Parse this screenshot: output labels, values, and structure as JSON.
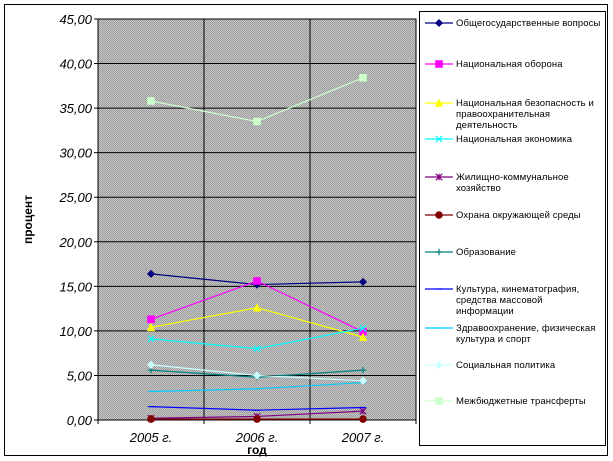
{
  "chart_data": {
    "type": "line",
    "title": "",
    "xlabel": "год",
    "ylabel": "процент",
    "categories": [
      "2005 г.",
      "2006 г.",
      "2007 г."
    ],
    "y_tick_labels": [
      "0,00",
      "5,00",
      "10,00",
      "15,00",
      "20,00",
      "25,00",
      "30,00",
      "35,00",
      "40,00",
      "45,00"
    ],
    "ylim": [
      0,
      45
    ],
    "grid": true,
    "legend_position": "right",
    "series": [
      {
        "name": "Общегосударственные вопросы",
        "values": [
          16.4,
          15.2,
          15.5
        ],
        "color": "#000080",
        "marker": "diamond"
      },
      {
        "name": "Национальная оборона",
        "values": [
          11.3,
          15.6,
          9.9
        ],
        "color": "#ff00ff",
        "marker": "square"
      },
      {
        "name": "Национальная безопасность и правоохранительная деятельность",
        "values": [
          10.4,
          12.6,
          9.3
        ],
        "color": "#ffff00",
        "marker": "triangle"
      },
      {
        "name": "Национальная экономика",
        "values": [
          9.1,
          8.0,
          10.3
        ],
        "color": "#00ffff",
        "marker": "x"
      },
      {
        "name": "Жилищно-коммунальное хозяйство",
        "values": [
          0.2,
          0.4,
          1.0
        ],
        "color": "#800080",
        "marker": "star"
      },
      {
        "name": "Охрана окружающей среды",
        "values": [
          0.1,
          0.1,
          0.1
        ],
        "color": "#800000",
        "marker": "circle"
      },
      {
        "name": "Образование",
        "values": [
          5.6,
          4.8,
          5.6
        ],
        "color": "#008080",
        "marker": "plus"
      },
      {
        "name": "Культура, кинематография, средства массовой информации",
        "values": [
          1.5,
          1.1,
          1.4
        ],
        "color": "#0000ff",
        "marker": "dash"
      },
      {
        "name": "Здравоохранение, физическая культура и спорт",
        "values": [
          3.2,
          3.5,
          4.2
        ],
        "color": "#00ccff",
        "marker": "dash"
      },
      {
        "name": "Социальная политика",
        "values": [
          6.2,
          5.0,
          4.4
        ],
        "color": "#ccffff",
        "marker": "diamond"
      },
      {
        "name": "Межбюджетные трансферты",
        "values": [
          35.8,
          33.5,
          38.4
        ],
        "color": "#ccffcc",
        "marker": "square"
      }
    ]
  },
  "legend_labels": [
    "Общегосударственные вопросы",
    "Национальная оборона",
    "Национальная безопасность и правоохранительная деятельность",
    "Национальная экономика",
    "Жилищно-коммунальное хозяйство",
    "Охрана окружающей среды",
    "Образование",
    "Культура, кинематография, средства массовой информации",
    "Здравоохранение, физическая культура и спорт",
    "Социальная политика",
    "Межбюджетные трансферты"
  ]
}
